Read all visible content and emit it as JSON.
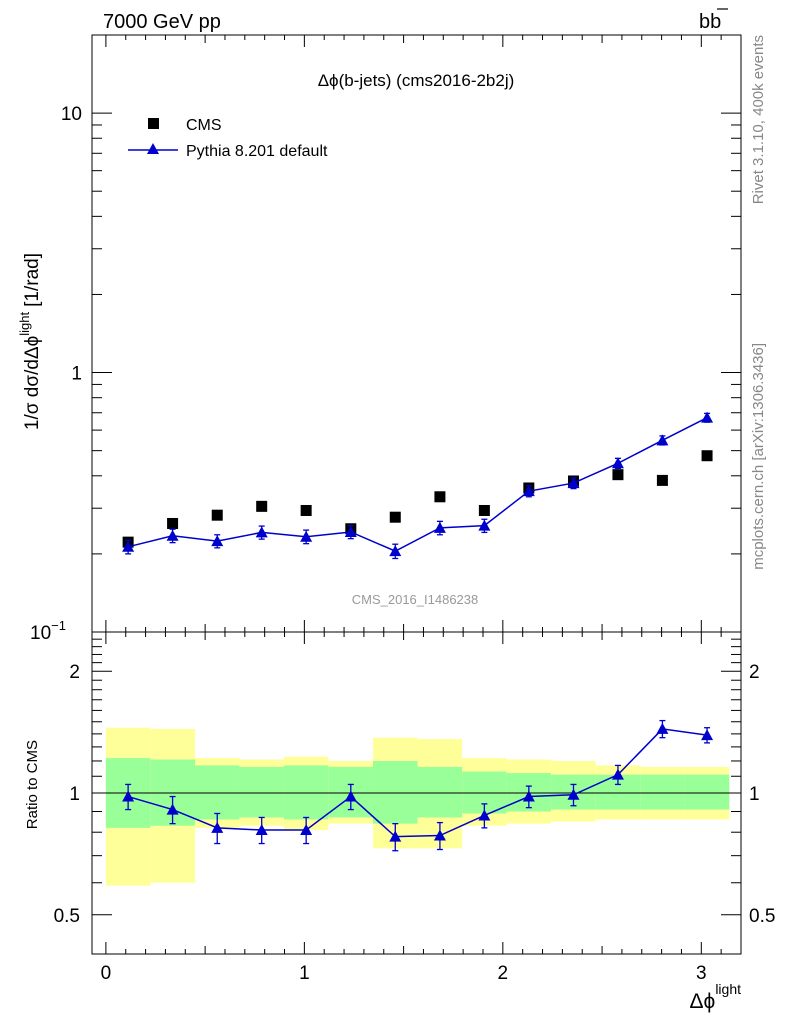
{
  "header": {
    "left": "7000 GeV pp",
    "right_main": "b",
    "right_bar": "b"
  },
  "side_labels": {
    "rivet": "Rivet 3.1.10,  400k events",
    "mcplots": "mcplots.cern.ch [arXiv:1306.3436]"
  },
  "watermark": "CMS_2016_I1486238",
  "chart_data": [
    {
      "type": "scatter",
      "panel": "main",
      "title": "Δϕ(b-jets) (cms2016-2b2j)",
      "ylabel": "1/σ dσ/dΔϕ^light [1/rad]",
      "ylabel_main": "1/σ dσ/dΔϕ",
      "ylabel_sup": "light",
      "ylabel_unit": "[1/rad]",
      "yscale": "log",
      "ylim": [
        0.1,
        20
      ],
      "xlim": [
        -0.07,
        3.2
      ],
      "yticks": [
        {
          "value": 0.1,
          "label": "10",
          "sup": "−1"
        },
        {
          "value": 1,
          "label": "1",
          "sup": ""
        },
        {
          "value": 10,
          "label": "10",
          "sup": ""
        }
      ],
      "legend_position": "top-left",
      "series": [
        {
          "name": "CMS",
          "marker": "square",
          "color": "#000000",
          "x": [
            0.112,
            0.336,
            0.561,
            0.785,
            1.009,
            1.234,
            1.458,
            1.683,
            1.907,
            2.131,
            2.356,
            2.58,
            2.804,
            3.029
          ],
          "y": [
            0.222,
            0.262,
            0.282,
            0.305,
            0.294,
            0.25,
            0.277,
            0.332,
            0.294,
            0.359,
            0.382,
            0.404,
            0.384,
            0.478
          ]
        },
        {
          "name": "Pythia 8.201 default",
          "marker": "triangle",
          "color": "#0000cc",
          "x": [
            0.112,
            0.336,
            0.561,
            0.785,
            1.009,
            1.234,
            1.458,
            1.683,
            1.907,
            2.131,
            2.356,
            2.58,
            2.804,
            3.029
          ],
          "y": [
            0.213,
            0.235,
            0.224,
            0.242,
            0.233,
            0.243,
            0.205,
            0.252,
            0.257,
            0.349,
            0.375,
            0.447,
            0.548,
            0.67
          ],
          "err": [
            0.013,
            0.014,
            0.013,
            0.014,
            0.014,
            0.014,
            0.013,
            0.015,
            0.015,
            0.017,
            0.018,
            0.02,
            0.022,
            0.026
          ]
        }
      ]
    },
    {
      "type": "scatter",
      "panel": "ratio",
      "ylabel": "Ratio to CMS",
      "xlabel": "Δϕ^light",
      "xlabel_main": "Δϕ",
      "xlabel_sup": "light",
      "yscale": "log",
      "ylim": [
        0.4,
        2.5
      ],
      "xlim": [
        -0.07,
        3.2
      ],
      "xticks": [
        0,
        1,
        2,
        3
      ],
      "yticks": [
        {
          "value": 0.5,
          "label": "0.5"
        },
        {
          "value": 1,
          "label": "1"
        },
        {
          "value": 2,
          "label": "2"
        }
      ],
      "bands": {
        "color_inner": "#99ff99",
        "color_outer": "#ffff99",
        "bins": [
          0,
          0.224,
          0.449,
          0.673,
          0.897,
          1.121,
          1.346,
          1.57,
          1.795,
          2.019,
          2.243,
          2.468,
          2.692,
          2.916,
          3.141
        ],
        "inner_lo": [
          0.82,
          0.83,
          0.86,
          0.87,
          0.86,
          0.87,
          0.84,
          0.87,
          0.89,
          0.9,
          0.91,
          0.91,
          0.91,
          0.91
        ],
        "inner_hi": [
          1.22,
          1.21,
          1.17,
          1.16,
          1.17,
          1.16,
          1.2,
          1.16,
          1.13,
          1.12,
          1.11,
          1.11,
          1.11,
          1.11
        ],
        "outer_lo": [
          0.59,
          0.6,
          0.82,
          0.83,
          0.81,
          0.84,
          0.73,
          0.73,
          0.83,
          0.84,
          0.85,
          0.86,
          0.86,
          0.86
        ],
        "outer_hi": [
          1.45,
          1.44,
          1.22,
          1.21,
          1.23,
          1.2,
          1.37,
          1.36,
          1.22,
          1.21,
          1.2,
          1.17,
          1.16,
          1.16
        ]
      },
      "series": [
        {
          "name": "Pythia 8.201 default",
          "marker": "triangle",
          "color": "#0000cc",
          "x": [
            0.112,
            0.336,
            0.561,
            0.785,
            1.009,
            1.234,
            1.458,
            1.683,
            1.907,
            2.131,
            2.356,
            2.58,
            2.804,
            3.029
          ],
          "y": [
            0.98,
            0.91,
            0.82,
            0.81,
            0.81,
            0.98,
            0.78,
            0.785,
            0.88,
            0.98,
            0.99,
            1.11,
            1.44,
            1.39
          ],
          "err": [
            0.07,
            0.07,
            0.07,
            0.06,
            0.06,
            0.07,
            0.06,
            0.06,
            0.06,
            0.06,
            0.06,
            0.06,
            0.07,
            0.06
          ]
        }
      ]
    }
  ]
}
